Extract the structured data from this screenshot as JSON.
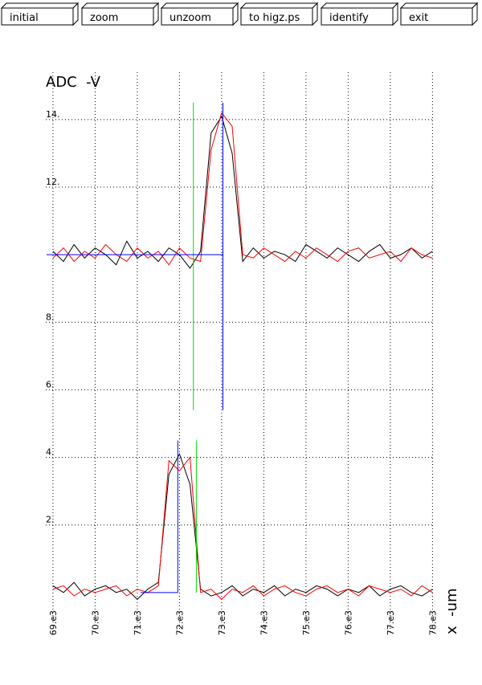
{
  "buttons": [
    "initial",
    "zoom",
    "unzoom",
    "to higz.ps",
    "identify",
    "exit"
  ],
  "chart_data": {
    "type": "line",
    "ylabel": "ADC  -V",
    "xlabel": "x  -um",
    "x": [
      69000,
      69250,
      69500,
      69750,
      70000,
      70250,
      70500,
      70750,
      71000,
      71250,
      71500,
      71750,
      72000,
      72250,
      72500,
      72750,
      73000,
      73250,
      73500,
      73750,
      74000,
      74250,
      74500,
      74750,
      75000,
      75250,
      75500,
      75750,
      76000,
      76250,
      76500,
      76750,
      77000,
      77250,
      77500,
      77750,
      78000
    ],
    "series": [
      {
        "color": "#000000",
        "values": [
          10.1,
          9.8,
          10.3,
          9.9,
          10.2,
          10.0,
          9.7,
          10.4,
          9.9,
          10.1,
          9.8,
          10.2,
          10.0,
          9.6,
          10.1,
          13.6,
          14.1,
          13.0,
          9.8,
          10.2,
          9.9,
          10.1,
          10.0,
          9.8,
          10.3,
          10.1,
          9.9,
          10.2,
          10.0,
          9.8,
          10.1,
          10.3,
          9.9,
          10.0,
          10.2,
          9.9,
          10.1
        ]
      },
      {
        "color": "#ff0000",
        "values": [
          9.9,
          10.2,
          9.8,
          10.1,
          9.9,
          10.3,
          10.0,
          9.8,
          10.2,
          9.9,
          10.1,
          9.7,
          10.2,
          9.9,
          9.8,
          13.1,
          14.2,
          13.8,
          10.0,
          9.9,
          10.2,
          10.0,
          9.8,
          10.1,
          9.9,
          10.2,
          10.0,
          9.8,
          10.1,
          10.2,
          9.9,
          10.0,
          10.1,
          9.8,
          10.2,
          10.0,
          9.9
        ]
      },
      {
        "color": "#000000",
        "values": [
          0.2,
          0.0,
          0.3,
          -0.1,
          0.1,
          0.2,
          0.0,
          0.1,
          -0.2,
          0.1,
          0.3,
          3.5,
          4.1,
          3.2,
          0.1,
          -0.1,
          0.0,
          0.2,
          -0.1,
          0.1,
          0.0,
          0.2,
          -0.1,
          0.1,
          0.0,
          0.2,
          0.1,
          -0.1,
          0.1,
          0.0,
          0.2,
          -0.1,
          0.1,
          0.2,
          0.0,
          -0.1,
          0.1
        ]
      },
      {
        "color": "#ff0000",
        "values": [
          0.1,
          0.2,
          -0.1,
          0.1,
          0.0,
          0.1,
          0.2,
          -0.1,
          0.1,
          0.0,
          0.2,
          3.9,
          3.6,
          4.0,
          0.0,
          0.1,
          -0.2,
          0.1,
          0.0,
          0.2,
          -0.1,
          0.1,
          0.2,
          0.0,
          -0.1,
          0.1,
          0.2,
          0.0,
          0.1,
          -0.1,
          0.2,
          0.1,
          0.0,
          0.1,
          -0.1,
          0.2,
          0.0
        ]
      }
    ],
    "markers": [
      {
        "color": "#0000ff",
        "x": 73030,
        "y": [
          5.4,
          14.5
        ]
      },
      {
        "color": "#00dd00",
        "x": 72330,
        "y": [
          5.4,
          14.5
        ]
      },
      {
        "color": "#0000ff",
        "x": 71960,
        "y": [
          0,
          4.5
        ]
      },
      {
        "color": "#00dd00",
        "x": 72400,
        "y": [
          0,
          4.5
        ]
      }
    ],
    "hlines": [
      {
        "color": "#0000ff",
        "y": 10,
        "x": [
          68850,
          73030
        ]
      },
      {
        "color": "#0000ff",
        "y": 0,
        "x": [
          71080,
          71960
        ]
      }
    ],
    "xlim": [
      68830,
      78050
    ],
    "ylim": [
      -1.24,
      15.4
    ],
    "xticks": [
      {
        "value": 69000,
        "label": "69.e3"
      },
      {
        "value": 70000,
        "label": "70.e3"
      },
      {
        "value": 71000,
        "label": "71.e3"
      },
      {
        "value": 72000,
        "label": "72.e3"
      },
      {
        "value": 73000,
        "label": "73.e3"
      },
      {
        "value": 74000,
        "label": "74.e3"
      },
      {
        "value": 75000,
        "label": "75.e3"
      },
      {
        "value": 76000,
        "label": "76.e3"
      },
      {
        "value": 77000,
        "label": "77.e3"
      },
      {
        "value": 78000,
        "label": "78.e3"
      }
    ],
    "yticks": [
      {
        "value": 2,
        "label": "2."
      },
      {
        "value": 4,
        "label": "4."
      },
      {
        "value": 6,
        "label": "6."
      },
      {
        "value": 8,
        "label": "8."
      },
      {
        "value": 12,
        "label": "12."
      },
      {
        "value": 14,
        "label": "14."
      }
    ],
    "grid": true
  }
}
